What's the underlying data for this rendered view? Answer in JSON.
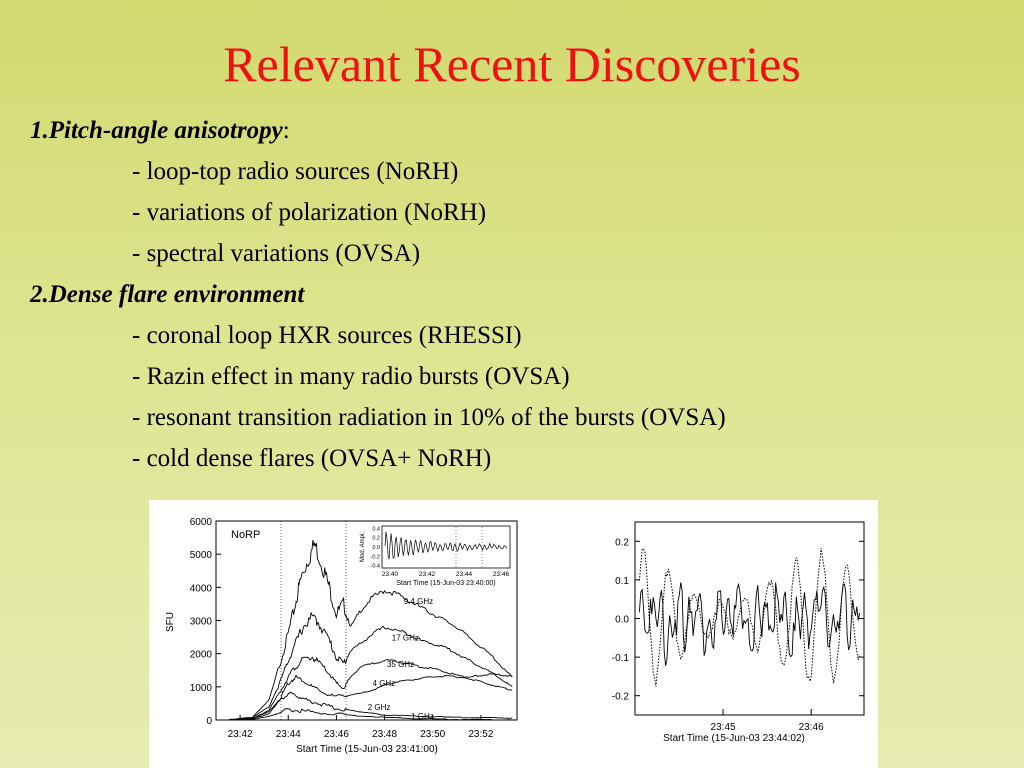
{
  "slide": {
    "title": "Relevant Recent Discoveries",
    "sections": [
      {
        "heading": "1.Pitch-angle anisotropy",
        "heading_suffix": ":",
        "items": [
          "- loop-top radio sources (NoRH)",
          "- variations of polarization (NoRH)",
          "- spectral variations (OVSA)"
        ]
      },
      {
        "heading": "2.Dense flare environment",
        "heading_suffix": "",
        "items": [
          "- coronal loop HXR sources (RHESSI)",
          "- Razin effect in many radio bursts (OVSA)",
          "- resonant transition radiation in 10% of the bursts (OVSA)",
          "- cold dense flares (OVSA+ NoRH)"
        ]
      }
    ]
  },
  "chart_data": [
    {
      "type": "line",
      "panel_label": "NoRP",
      "xlabel": "Start Time (15-Jun-03 23:41:00)",
      "ylabel": "SFU",
      "xlim": [
        41.0,
        53.5
      ],
      "ylim": [
        0,
        6000
      ],
      "x_ticks": [
        "23:42",
        "23:44",
        "23:46",
        "23:48",
        "23:50",
        "23:52"
      ],
      "y_ticks": [
        "0",
        "1000",
        "2000",
        "3000",
        "4000",
        "5000",
        "6000"
      ],
      "series": [
        {
          "name": "9.4 GHz",
          "x": [
            41.5,
            42.5,
            43.2,
            43.7,
            44.0,
            44.3,
            44.5,
            44.8,
            45.1,
            45.4,
            45.7,
            46.0,
            46.3,
            46.6,
            47.0,
            47.5,
            48.0,
            48.5,
            49.0,
            49.5,
            50.0,
            50.5,
            51.0,
            51.5,
            52.0,
            52.5,
            53.0,
            53.3
          ],
          "y": [
            0,
            80,
            600,
            1800,
            2600,
            3500,
            4200,
            4800,
            5300,
            4700,
            4000,
            3200,
            3500,
            2800,
            3300,
            3700,
            3900,
            3800,
            3600,
            3400,
            3200,
            3000,
            2800,
            2500,
            2200,
            1900,
            1500,
            1300
          ]
        },
        {
          "name": "17 GHz",
          "x": [
            41.5,
            42.5,
            43.2,
            43.7,
            44.0,
            44.3,
            44.6,
            45.0,
            45.3,
            45.7,
            46.0,
            46.3,
            46.6,
            47.0,
            47.5,
            48.0,
            48.5,
            49.0,
            49.5,
            50.0,
            50.5,
            51.0,
            51.5,
            52.0,
            52.5,
            53.0,
            53.3
          ],
          "y": [
            0,
            60,
            400,
            1200,
            1800,
            2300,
            2800,
            3100,
            2900,
            2400,
            1900,
            1700,
            2100,
            2300,
            2600,
            2800,
            2700,
            2600,
            2400,
            2300,
            2200,
            2000,
            1800,
            1600,
            1400,
            1150,
            1000
          ]
        },
        {
          "name": "35 GHz",
          "x": [
            41.5,
            42.5,
            43.2,
            43.7,
            44.0,
            44.3,
            44.6,
            45.0,
            45.3,
            45.7,
            46.0,
            46.3,
            46.6,
            47.0,
            47.5,
            48.0,
            48.5,
            49.0,
            49.5,
            50.0,
            50.5,
            51.0,
            51.5,
            52.0,
            52.5,
            53.0,
            53.3
          ],
          "y": [
            0,
            40,
            300,
            900,
            1300,
            1600,
            1800,
            1900,
            1700,
            1400,
            1100,
            950,
            1300,
            1600,
            1700,
            1800,
            1780,
            1700,
            1600,
            1550,
            1450,
            1350,
            1250,
            1150,
            1050,
            950,
            900
          ]
        },
        {
          "name": "4 GHz",
          "x": [
            41.5,
            42.5,
            43.2,
            43.7,
            44.0,
            44.3,
            44.6,
            45.0,
            45.5,
            46.0,
            46.5,
            47.0,
            47.5,
            48.0,
            48.5,
            49.0,
            49.5,
            50.0,
            50.5,
            51.0,
            51.5,
            52.0,
            52.5,
            53.0,
            53.3
          ],
          "y": [
            0,
            30,
            250,
            700,
            1100,
            1300,
            1200,
            1000,
            800,
            700,
            750,
            800,
            900,
            1050,
            1150,
            1200,
            1250,
            1300,
            1320,
            1300,
            1280,
            1350,
            1380,
            1350,
            1300
          ]
        },
        {
          "name": "2 GHz",
          "x": [
            41.5,
            42.5,
            43.2,
            43.7,
            44.0,
            44.3,
            44.6,
            45.0,
            45.5,
            46.0,
            46.5,
            47.0,
            47.5,
            48.0,
            49.0,
            50.0,
            51.0,
            52.0,
            53.0,
            53.3
          ],
          "y": [
            0,
            30,
            200,
            600,
            800,
            750,
            650,
            550,
            450,
            350,
            300,
            250,
            200,
            150,
            120,
            100,
            80,
            70,
            60,
            60
          ]
        },
        {
          "name": "1 GHz",
          "x": [
            41.5,
            42.5,
            43.2,
            43.7,
            44.0,
            44.5,
            45.0,
            46.0,
            47.0,
            48.0,
            49.0,
            50.0,
            51.0,
            52.0,
            53.0,
            53.3
          ],
          "y": [
            0,
            20,
            100,
            250,
            300,
            280,
            240,
            180,
            120,
            80,
            50,
            30,
            20,
            10,
            5,
            0
          ]
        }
      ],
      "inset": {
        "ylabel": "Mod. Ampl.",
        "xlabel": "Start Time (15-Jun-03 23:40:00)",
        "x_ticks": [
          "23:40",
          "23:42",
          "23:44",
          "23:46"
        ],
        "y_ticks": [
          "0.4",
          "0.2",
          "0.0",
          "-0.2",
          "-0.4"
        ],
        "ylim": [
          -0.45,
          0.45
        ]
      }
    },
    {
      "type": "line",
      "xlabel": "Start Time (15-Jun-03 23:44:02)",
      "ylabel": "",
      "xlim": [
        44.0,
        46.6
      ],
      "ylim": [
        -0.25,
        0.25
      ],
      "x_ticks": [
        "23:45",
        "23:46"
      ],
      "y_ticks": [
        "0.2",
        "0.1",
        "0.0",
        "-0.1",
        "-0.2"
      ],
      "series_styles": [
        "solid",
        "dotted"
      ]
    }
  ],
  "colors": {
    "title": "#f01010",
    "background_top": "#d2d96f",
    "background_bottom": "#e6ecb2"
  }
}
